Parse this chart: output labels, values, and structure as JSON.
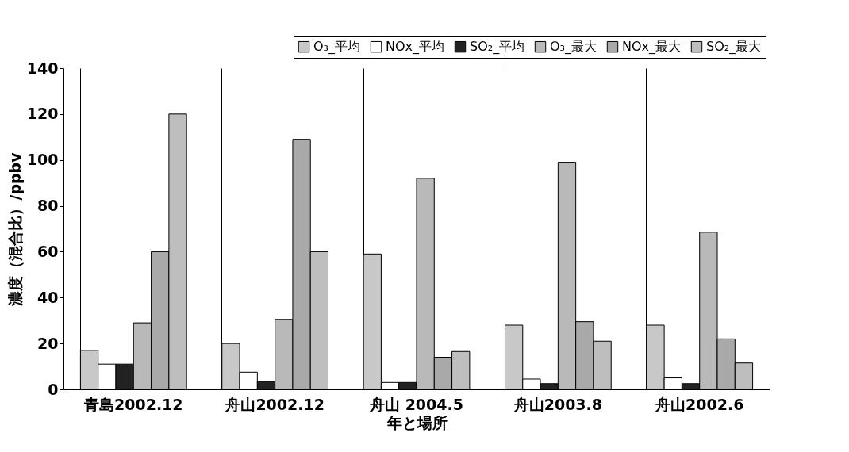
{
  "chart_data": {
    "type": "bar",
    "xlabel": "年と場所",
    "ylabel": "濃度（混合比）/ppbv",
    "categories": [
      "青島2002.12",
      "舟山2002.12",
      "舟山 2004.5",
      "舟山2003.8",
      "舟山2002.6"
    ],
    "series": [
      {
        "name": "O₃_平均",
        "color": "#c8c8c8",
        "values": [
          17,
          20,
          59,
          28,
          28
        ]
      },
      {
        "name": "NOx_平均",
        "color": "#ffffff",
        "values": [
          11,
          7.5,
          3,
          4.5,
          5
        ]
      },
      {
        "name": "SO₂_平均",
        "color": "#222222",
        "values": [
          11,
          3.5,
          3,
          2.5,
          2.5
        ]
      },
      {
        "name": "O₃_最大",
        "color": "#b9b9b9",
        "values": [
          29,
          30.5,
          92,
          99,
          68.5
        ]
      },
      {
        "name": "NOx_最大",
        "color": "#a9a9a9",
        "values": [
          60,
          109,
          14,
          29.5,
          22
        ]
      },
      {
        "name": "SO₂_最大",
        "color": "#bebebe",
        "values": [
          120,
          60,
          16.5,
          21,
          11.5
        ]
      }
    ],
    "ylim": [
      0,
      140
    ],
    "yticks": [
      0,
      20,
      40,
      60,
      80,
      100,
      120,
      140
    ],
    "grid": "x",
    "legend": "top right"
  }
}
